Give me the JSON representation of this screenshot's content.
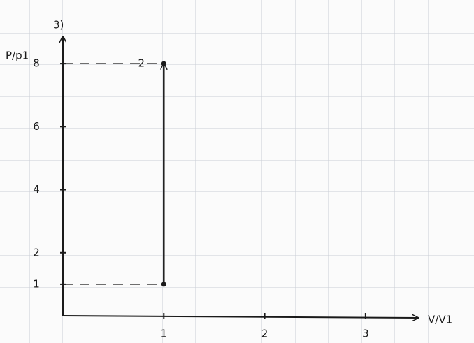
{
  "chart_data": {
    "type": "line",
    "title": "3)",
    "x_label": "V/V1",
    "y_label": "P/p1",
    "x": [
      1,
      1
    ],
    "values": [
      1,
      8
    ],
    "color": "#1a1a1a",
    "annotations": [
      {
        "text": "2",
        "x": 1,
        "y": 8
      }
    ],
    "xlim": [
      0,
      3.5
    ],
    "ylim": [
      0,
      8.8
    ],
    "xticks": [
      1,
      2,
      3
    ],
    "yticks": [
      1,
      2,
      4,
      6,
      8
    ],
    "projection_lines": true
  }
}
